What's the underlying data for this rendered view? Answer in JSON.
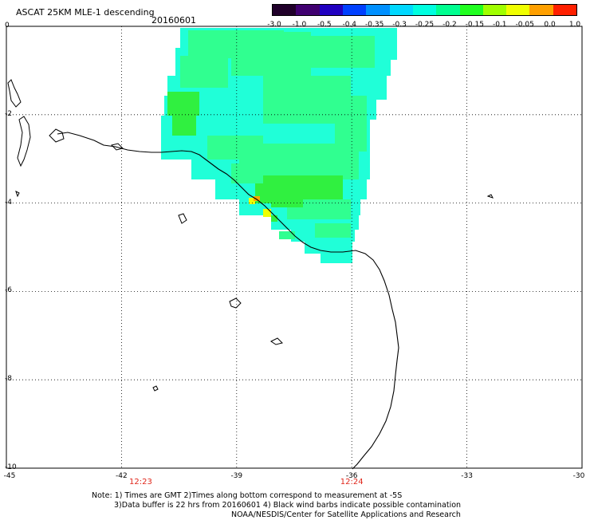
{
  "header": {
    "title": "ASCAT 25KM MLE-1 descending",
    "date": "20160601"
  },
  "colorbar": {
    "colors": [
      "#20002a",
      "#400070",
      "#2000c0",
      "#0040ff",
      "#0090ff",
      "#00d8ff",
      "#00ffe0",
      "#00ff90",
      "#20ff20",
      "#a0ff00",
      "#f0ff00",
      "#ffa000",
      "#ff2000"
    ],
    "labels": [
      "-3.0",
      "-1.0",
      "-0.5",
      "-0.4",
      "-0.35",
      "-0.3",
      "-0.25",
      "-0.2",
      "-0.15",
      "-0.1",
      "-0.05",
      "0.0",
      "1.0"
    ]
  },
  "axes": {
    "lon_labels": [
      "-45",
      "-42",
      "-39",
      "-36",
      "-33",
      "-30"
    ],
    "lat_labels": [
      "0",
      "-2",
      "-4",
      "-6",
      "-8",
      "-10"
    ],
    "lon_range": [
      -45,
      -30
    ],
    "lat_range": [
      0,
      -10
    ],
    "grid": "dotted"
  },
  "times": [
    {
      "label": "12:23",
      "lon": -41.5
    },
    {
      "label": "12:24",
      "lon": -36.0
    }
  ],
  "swath_colors": {
    "light_cyan": "#20ffd8",
    "mint": "#30ff90",
    "green": "#30f040",
    "yellow": "#f0ff00",
    "orange": "#ffa800"
  },
  "notes": {
    "line1": "Note: 1) Times are GMT 2)Times along bottom correspond to measurement at -5S",
    "line2": "3)Data buffer is 22 hrs from 20160601 4) Black wind barbs indicate possible contamination",
    "line3": "NOAA/NESDIS/Center for Satellite Applications and Research"
  }
}
